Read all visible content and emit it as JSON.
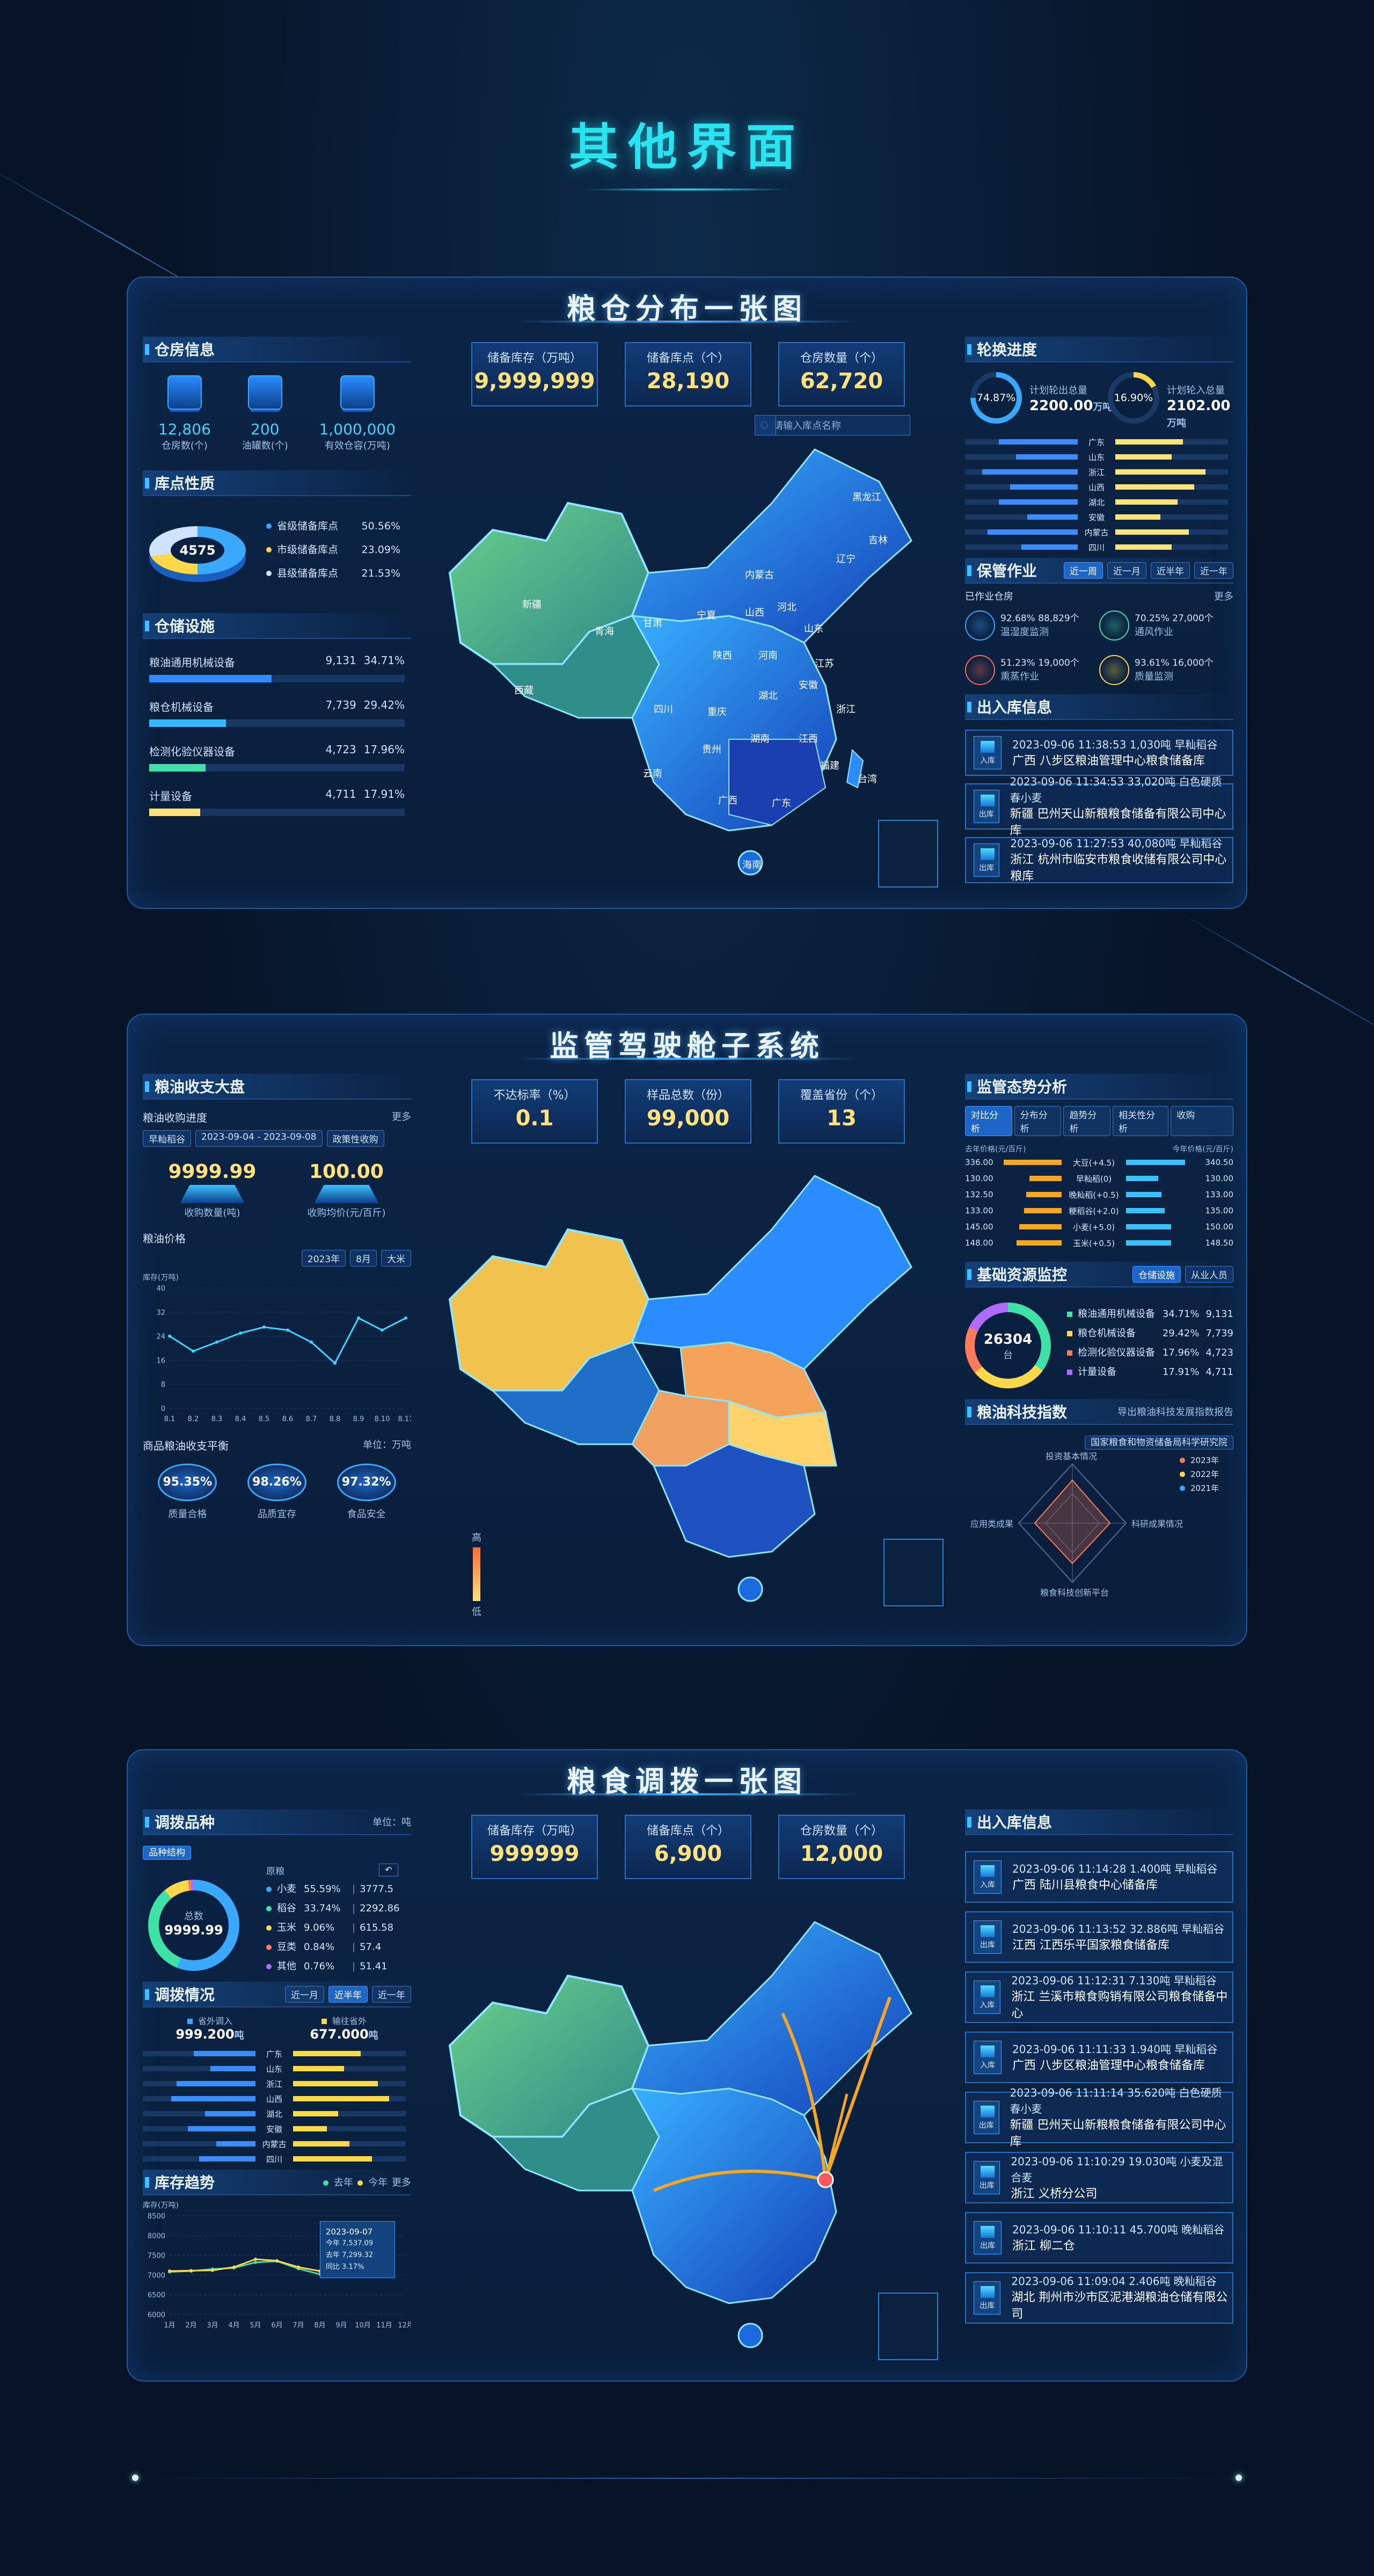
{
  "page_title": "其他界面",
  "panel1": {
    "title": "粮仓分布一张图",
    "stats": [
      {
        "label": "储备库存（万吨）",
        "value": "9,999,999"
      },
      {
        "label": "储备库点（个）",
        "value": "28,190"
      },
      {
        "label": "仓房数量（个）",
        "value": "62,720"
      }
    ],
    "search_placeholder": "请输入库点名称",
    "warehouse": {
      "title": "仓房信息",
      "items": [
        {
          "value": "12,806",
          "label": "仓房数(个)"
        },
        {
          "value": "200",
          "label": "油罐数(个)"
        },
        {
          "value": "1,000,000",
          "label": "有效仓容(万吨)"
        }
      ]
    },
    "depot": {
      "title": "库点性质",
      "total": "4575",
      "items": [
        {
          "label": "省级储备库点",
          "pct": "50.56%",
          "color": "#3aa8ff"
        },
        {
          "label": "市级储备库点",
          "pct": "23.09%",
          "color": "#ffd84a"
        },
        {
          "label": "县级储备库点",
          "pct": "21.53%",
          "color": "#cfe3ff"
        }
      ]
    },
    "facility": {
      "title": "仓储设施",
      "items": [
        {
          "label": "粮油通用机械设备",
          "num": "9,131",
          "pct": "34.71%",
          "fill": 0.48,
          "color": "#2e8cff"
        },
        {
          "label": "粮仓机械设备",
          "num": "7,739",
          "pct": "29.42%",
          "fill": 0.3,
          "color": "#34b8ff"
        },
        {
          "label": "检测化验仪器设备",
          "num": "4,723",
          "pct": "17.96%",
          "fill": 0.22,
          "color": "#3ee2a6"
        },
        {
          "label": "计量设备",
          "num": "4,711",
          "pct": "17.91%",
          "fill": 0.2,
          "color": "#ffe27a"
        }
      ]
    },
    "rotation": {
      "title": "轮换进度",
      "a_pct": "74.87%",
      "a_label": "计划轮出总量",
      "a_val": "2200.00",
      "a_unit": "万吨",
      "b_pct": "16.90%",
      "b_label": "计划轮入总量",
      "b_val": "2102.00",
      "b_unit": "万吨",
      "provinces": [
        "广东",
        "山东",
        "浙江",
        "山西",
        "湖北",
        "安徽",
        "内蒙古",
        "四川"
      ]
    },
    "storage": {
      "title": "保管作业",
      "tabs": [
        "近一周",
        "近一月",
        "近半年",
        "近一年"
      ],
      "sub": "已作业仓房",
      "more": "更多",
      "items": [
        {
          "pct": "92.68%",
          "num": "88,829个",
          "label": "温湿度监测",
          "color": "#3aa8ff"
        },
        {
          "pct": "70.25%",
          "num": "27,000个",
          "label": "通风作业",
          "color": "#3ee2a6"
        },
        {
          "pct": "51.23%",
          "num": "19,000个",
          "label": "熏蒸作业",
          "color": "#ff6a5a"
        },
        {
          "pct": "93.61%",
          "num": "16,000个",
          "label": "质量监测",
          "color": "#ffd84a"
        }
      ]
    },
    "io": {
      "title": "出入库信息",
      "items": [
        {
          "tag": "入库",
          "line1": "2023-09-06 11:38:53  1,030吨  早籼稻谷",
          "line2": "广西  八步区粮油管理中心粮食储备库"
        },
        {
          "tag": "出库",
          "line1": "2023-09-06 11:34:53  33,020吨  白色硬质春小麦",
          "line2": "新疆  巴州天山新粮粮食储备有限公司中心库"
        },
        {
          "tag": "出库",
          "line1": "2023-09-06 11:27:53  40,080吨  早籼稻谷",
          "line2": "浙江  杭州市临安市粮食收储有限公司中心粮库"
        }
      ]
    },
    "map_labels": [
      "新疆",
      "西藏",
      "青海",
      "甘肃",
      "内蒙古",
      "黑龙江",
      "吉林",
      "辽宁",
      "山西",
      "河北",
      "山东",
      "宁夏",
      "陕西",
      "河南",
      "江苏",
      "四川",
      "重庆",
      "湖北",
      "安徽",
      "浙江",
      "云南",
      "贵州",
      "湖南",
      "江西",
      "福建",
      "广西",
      "广东",
      "台湾",
      "海南"
    ]
  },
  "panel2": {
    "title": "监管驾驶舱子系统",
    "stats": [
      {
        "label": "不达标率（%）",
        "value": "0.1"
      },
      {
        "label": "样品总数（份）",
        "value": "99,000"
      },
      {
        "label": "覆盖省份（个）",
        "value": "13"
      }
    ],
    "grain": {
      "title": "粮油收支大盘",
      "sub1": "粮油收购进度",
      "more": "更多",
      "filters": [
        "早籼稻谷",
        "2023-09-04 - 2023-09-08",
        "政策性收购"
      ],
      "buy_qty": "9999.99",
      "buy_qty_label": "收购数量(吨)",
      "buy_price": "100.00",
      "buy_price_label": "收购均价(元/百斤)",
      "sub2": "粮油价格",
      "price_filters": [
        "2023年",
        "8月",
        "大米"
      ],
      "ylabel": "库存(万吨)"
    },
    "balance": {
      "title": "商品粮油收支平衡",
      "unit": "单位：万吨",
      "items": [
        {
          "pct": "95.35%",
          "label": "质量合格"
        },
        {
          "pct": "98.26%",
          "label": "品质宜存"
        },
        {
          "pct": "97.32%",
          "label": "食品安全"
        }
      ]
    },
    "legend_high": "高",
    "legend_low": "低",
    "trend": {
      "title": "监管态势分析",
      "tabs": [
        "对比分析",
        "分布分析",
        "趋势分析",
        "相关性分析"
      ],
      "select": "收购",
      "left_head": "去年价格(元/百斤)",
      "right_head": "今年价格(元/百斤)",
      "rows": [
        {
          "l": "336.00",
          "name": "大豆(+4.5)",
          "r": "340.50",
          "lf": 0.9,
          "rf": 0.92
        },
        {
          "l": "130.00",
          "name": "早籼稻(0)",
          "r": "130.00",
          "lf": 0.5,
          "rf": 0.5
        },
        {
          "l": "132.50",
          "name": "晚籼稻(+0.5)",
          "r": "133.00",
          "lf": 0.55,
          "rf": 0.55
        },
        {
          "l": "133.00",
          "name": "粳稻谷(+2.0)",
          "r": "135.00",
          "lf": 0.58,
          "rf": 0.6
        },
        {
          "l": "145.00",
          "name": "小麦(+5.0)",
          "r": "150.00",
          "lf": 0.66,
          "rf": 0.7
        },
        {
          "l": "148.00",
          "name": "玉米(+0.5)",
          "r": "148.50",
          "lf": 0.7,
          "rf": 0.7
        }
      ]
    },
    "resource": {
      "title": "基础资源监控",
      "tabs": [
        "仓储设施",
        "从业人员"
      ],
      "total": "26304",
      "unit": "台",
      "items": [
        {
          "label": "粮油通用机械设备",
          "pct": "34.71%",
          "num": "9,131",
          "color": "#3ee2a6"
        },
        {
          "label": "粮仓机械设备",
          "pct": "29.42%",
          "num": "7,739",
          "color": "#ffd84a"
        },
        {
          "label": "检测化验仪器设备",
          "pct": "17.96%",
          "num": "4,723",
          "color": "#ff7a5a"
        },
        {
          "label": "计量设备",
          "pct": "17.91%",
          "num": "4,711",
          "color": "#b06aff"
        }
      ]
    },
    "tech": {
      "title": "粮油科技指数",
      "export": "导出粮油科技发展指数报告",
      "select": "国家粮食和物资储备局科学研究院",
      "axes": [
        "投资基本情况",
        "科研成果情况",
        "粮食科技创新平台",
        "应用类成果"
      ],
      "legend": [
        "2023年",
        "2022年",
        "2021年"
      ]
    }
  },
  "panel3": {
    "title": "粮食调拨一张图",
    "stats": [
      {
        "label": "储备库存（万吨）",
        "value": "999999"
      },
      {
        "label": "储备库点（个）",
        "value": "6,900"
      },
      {
        "label": "仓房数量（个）",
        "value": "12,000"
      }
    ],
    "variety": {
      "title": "调拨品种",
      "unit": "单位：吨",
      "tab": "品种结构",
      "head": "原粮",
      "total_label": "总数",
      "total": "9999.99",
      "items": [
        {
          "name": "小麦",
          "pct": "55.59%",
          "val": "3777.5",
          "color": "#3aa8ff"
        },
        {
          "name": "稻谷",
          "pct": "33.74%",
          "val": "2292.86",
          "color": "#3ee2a6"
        },
        {
          "name": "玉米",
          "pct": "9.06%",
          "val": "615.58",
          "color": "#ffd84a"
        },
        {
          "name": "豆类",
          "pct": "0.84%",
          "val": "57.4",
          "color": "#ff7a5a"
        },
        {
          "name": "其他",
          "pct": "0.76%",
          "val": "51.41",
          "color": "#b06aff"
        }
      ]
    },
    "dispatch": {
      "title": "调拨情况",
      "tabs": [
        "近一月",
        "近半年",
        "近一年"
      ],
      "out_label": "省外调入",
      "out_val": "999.200",
      "in_label": "输往省外",
      "in_val": "677.000",
      "unit": "吨",
      "provinces": [
        "广东",
        "山东",
        "浙江",
        "山西",
        "湖北",
        "安徽",
        "内蒙古",
        "四川"
      ]
    },
    "stock": {
      "title": "库存趋势",
      "legend": [
        "去年",
        "今年"
      ],
      "more": "更多",
      "ylabel": "库存(万吨)",
      "tooltip": {
        "date": "2023-09-07",
        "a": "今年  7,537.09",
        "b": "去年  7,299.32",
        "c": "同比  3.17%"
      }
    },
    "io": {
      "title": "出入库信息",
      "items": [
        {
          "tag": "入库",
          "line1": "2023-09-06 11:14:28  1.400吨  早籼稻谷",
          "line2": "广西  陆川县粮食中心储备库"
        },
        {
          "tag": "出库",
          "line1": "2023-09-06 11:13:52  32.886吨  早籼稻谷",
          "line2": "江西  江西乐平国家粮食储备库"
        },
        {
          "tag": "入库",
          "line1": "2023-09-06 11:12:31  7.130吨  早籼稻谷",
          "line2": "浙江  兰溪市粮食购销有限公司粮食储备中心"
        },
        {
          "tag": "入库",
          "line1": "2023-09-06 11:11:33  1.940吨  早籼稻谷",
          "line2": "广西  八步区粮油管理中心粮食储备库"
        },
        {
          "tag": "出库",
          "line1": "2023-09-06 11:11:14  35.620吨  白色硬质春小麦",
          "line2": "新疆  巴州天山新粮粮食储备有限公司中心库"
        },
        {
          "tag": "出库",
          "line1": "2023-09-06 11:10:29  19.030吨  小麦及混合麦",
          "line2": "浙江  义桥分公司"
        },
        {
          "tag": "出库",
          "line1": "2023-09-06 11:10:11  45.700吨  晚籼稻谷",
          "line2": "浙江  柳二仓"
        },
        {
          "tag": "出库",
          "line1": "2023-09-06 11:09:04  2.406吨  晚籼稻谷",
          "line2": "湖北  荆州市沙市区泥港湖粮油仓储有限公司"
        }
      ]
    }
  },
  "chart_data": [
    {
      "type": "line",
      "title": "粮油价格",
      "ylabel": "库存(万吨)",
      "x": [
        "8.1",
        "8.2",
        "8.3",
        "8.4",
        "8.5",
        "8.6",
        "8.7",
        "8.8",
        "8.9",
        "8.10",
        "8.11"
      ],
      "series": [
        {
          "values": [
            24,
            19,
            22,
            25,
            27,
            26,
            22,
            15,
            30,
            26,
            30
          ]
        }
      ],
      "ylim": [
        0,
        40
      ]
    },
    {
      "type": "line",
      "title": "库存趋势",
      "ylabel": "库存(万吨)",
      "x": [
        "1月",
        "2月",
        "3月",
        "4月",
        "5月",
        "6月",
        "7月",
        "8月",
        "9月",
        "10月",
        "11月",
        "12月"
      ],
      "series": [
        {
          "name": "去年",
          "values": [
            7080,
            7100,
            7150,
            7180,
            7320,
            7350,
            7160,
            7020,
            null,
            null,
            null,
            null
          ]
        },
        {
          "name": "今年",
          "values": [
            7100,
            7110,
            7120,
            7200,
            7400,
            7360,
            7200,
            7100,
            null,
            null,
            null,
            null
          ]
        }
      ],
      "ylim": [
        6000,
        8500
      ]
    }
  ]
}
